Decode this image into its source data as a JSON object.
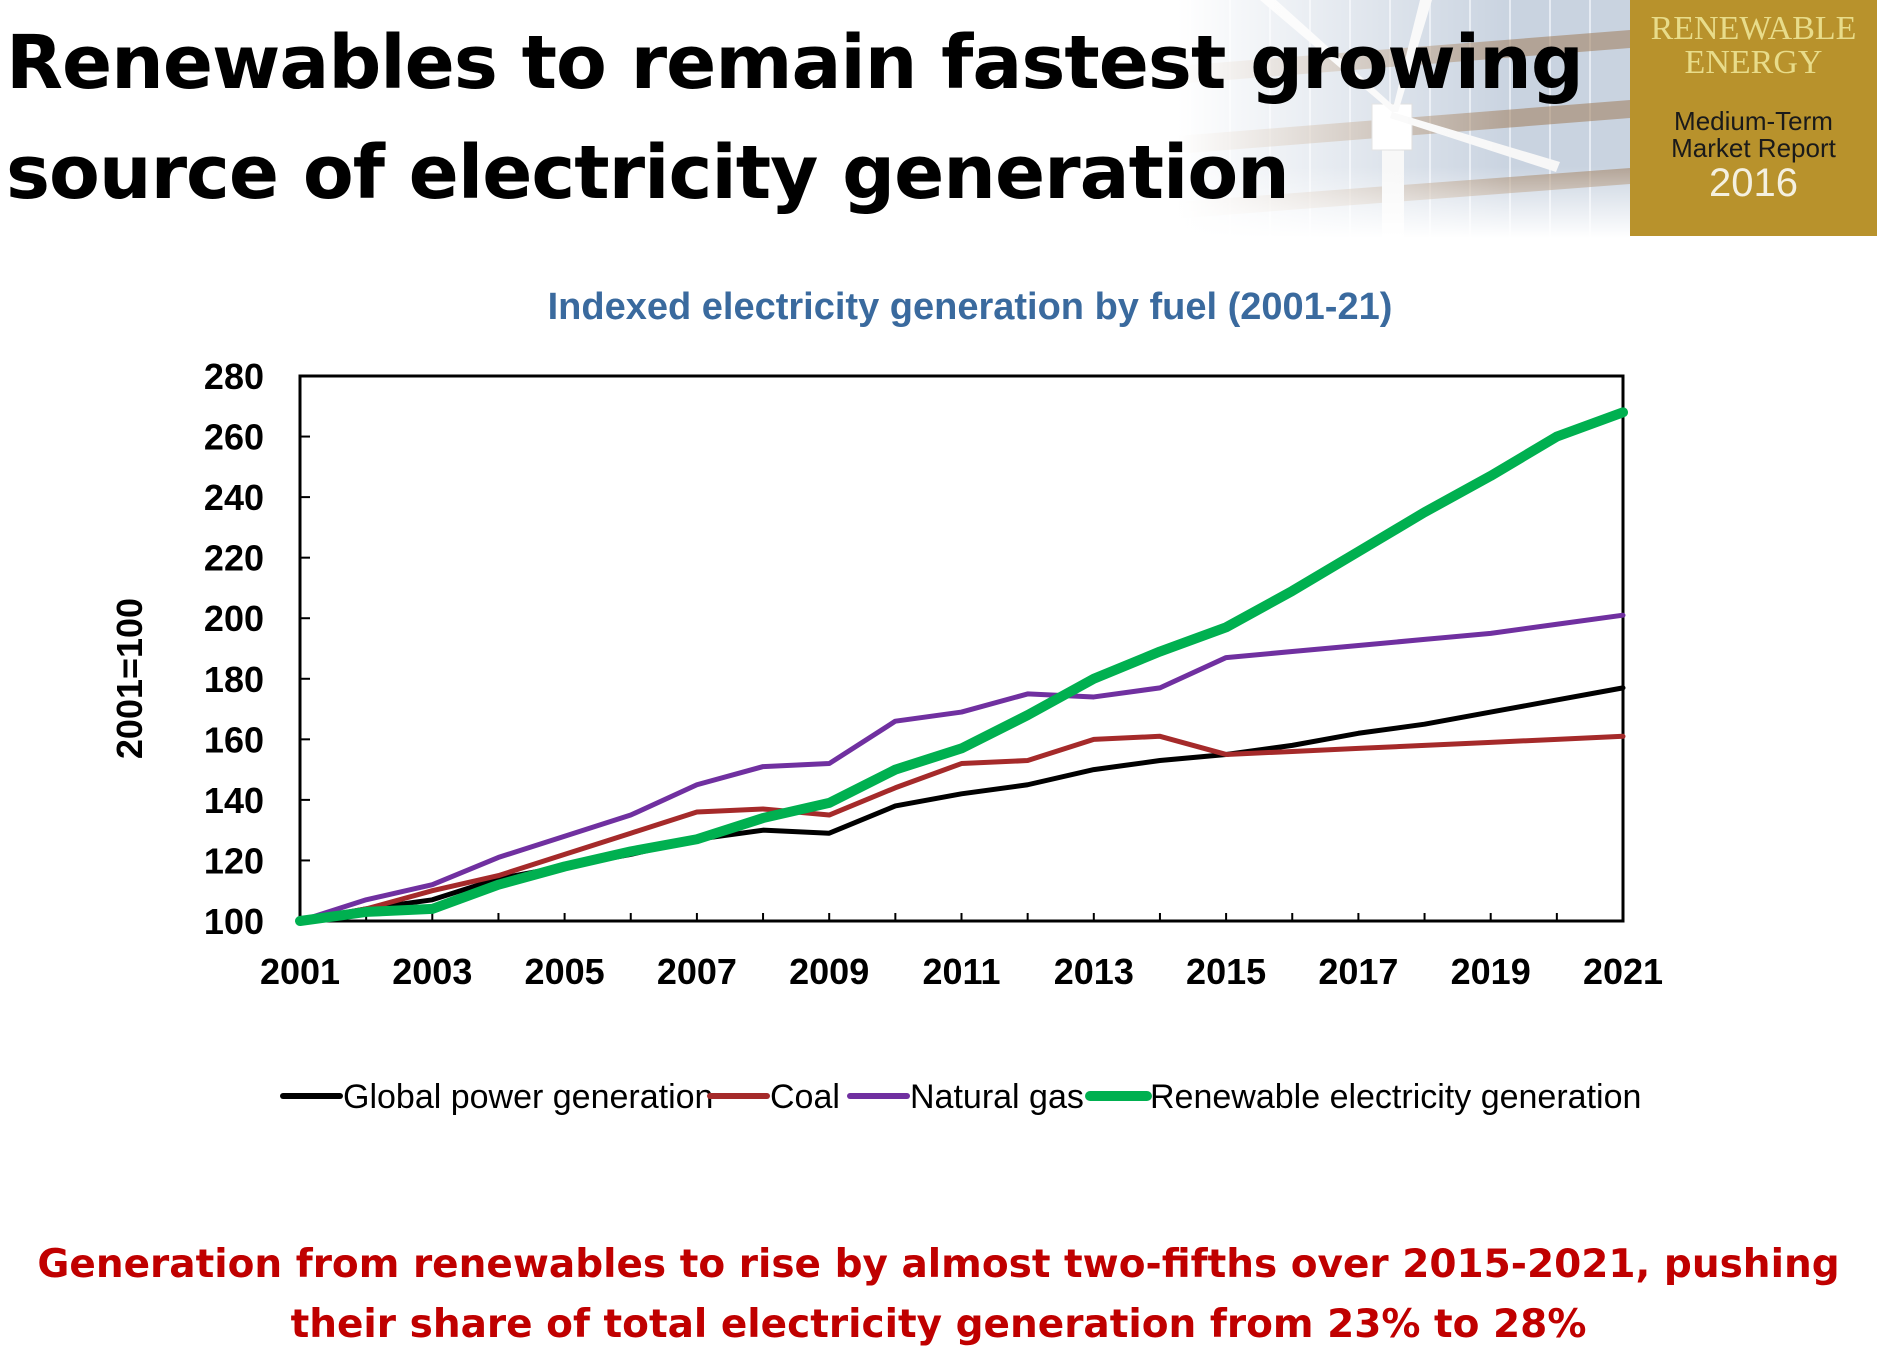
{
  "slide": {
    "title": "Renewables to remain fastest growing\nsource of electricity generation",
    "footer": "Generation from renewables to rise by almost two-fifths over 2015-2021, pushing\ntheir share of total electricity generation from 23% to 28%"
  },
  "badge": {
    "line1": "RENEWABLE",
    "line2": "ENERGY",
    "line3": "Medium-Term",
    "line4": "Market Report",
    "line5": "2016"
  },
  "chart_data": {
    "type": "line",
    "title": "Indexed electricity generation by fuel (2001-21)",
    "xlabel": "",
    "ylabel": "2001=100",
    "x": [
      2001,
      2002,
      2003,
      2004,
      2005,
      2006,
      2007,
      2008,
      2009,
      2010,
      2011,
      2012,
      2013,
      2014,
      2015,
      2016,
      2017,
      2018,
      2019,
      2020,
      2021
    ],
    "xticks": [
      "2001",
      "2003",
      "2005",
      "2007",
      "2009",
      "2011",
      "2013",
      "2015",
      "2017",
      "2019",
      "2021"
    ],
    "yticks": [
      "100",
      "120",
      "140",
      "160",
      "180",
      "200",
      "220",
      "240",
      "260",
      "280"
    ],
    "xlim": [
      2001,
      2021
    ],
    "ylim": [
      100,
      280
    ],
    "grid": false,
    "legend_position": "bottom",
    "series": [
      {
        "name": "Global power generation",
        "color": "#000000",
        "values": [
          100,
          104,
          107,
          114,
          118,
          122,
          127,
          130,
          129,
          138,
          142,
          145,
          150,
          153,
          155,
          158,
          162,
          165,
          169,
          173,
          177
        ]
      },
      {
        "name": "Coal",
        "color": "#a52a2a",
        "values": [
          100,
          104,
          110,
          115,
          122,
          129,
          136,
          137,
          135,
          144,
          152,
          153,
          160,
          161,
          155,
          156,
          157,
          158,
          159,
          160,
          161
        ]
      },
      {
        "name": "Natural gas",
        "color": "#7030a0",
        "values": [
          100,
          107,
          112,
          121,
          128,
          135,
          145,
          151,
          152,
          166,
          169,
          175,
          174,
          177,
          187,
          189,
          191,
          193,
          195,
          198,
          201
        ]
      },
      {
        "name": "Renewable electricity generation",
        "color": "#00b050",
        "values": [
          100,
          103,
          104,
          112,
          118,
          123,
          127,
          134,
          139,
          150,
          157,
          168,
          180,
          189,
          197,
          209,
          222,
          235,
          247,
          260,
          268
        ]
      }
    ]
  }
}
